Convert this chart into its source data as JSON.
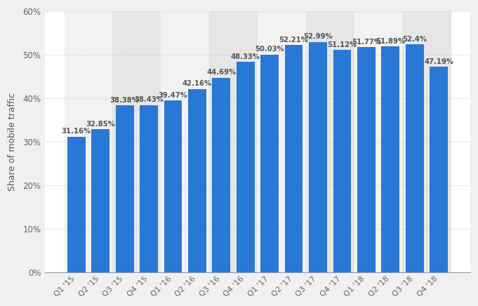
{
  "categories": [
    "Q1 '15",
    "Q2 '15",
    "Q3 '15",
    "Q4 '15",
    "Q1 '16",
    "Q2 '16",
    "Q3 '16",
    "Q4 '16",
    "Q1 '17",
    "Q2 '17",
    "Q3 '17",
    "Q4 '17",
    "Q1 '18",
    "Q2 '18",
    "Q3 '18",
    "Q4 '18"
  ],
  "values": [
    31.16,
    32.85,
    38.38,
    38.43,
    39.47,
    42.16,
    44.69,
    48.33,
    50.03,
    52.21,
    52.99,
    51.12,
    51.77,
    51.89,
    52.4,
    47.19
  ],
  "labels": [
    "31.16%",
    "32.85%",
    "38.38%",
    "38.43%",
    "39.47%",
    "42.16%",
    "44.69%",
    "48.33%",
    "50.03%",
    "52.21%",
    "52.99%",
    "51.12%",
    "51.77%",
    "51.89%",
    "52.4%",
    "47.19%"
  ],
  "bar_color": "#2878d6",
  "ylabel": "Share of mobile traffic",
  "ylim": [
    0,
    60
  ],
  "yticks": [
    0,
    10,
    20,
    30,
    40,
    50,
    60
  ],
  "ytick_labels": [
    "0%",
    "10%",
    "20%",
    "30%",
    "40%",
    "50%",
    "60%"
  ],
  "grid_color": "#cccccc",
  "plot_bg_color": "#ffffff",
  "outer_bg_color": "#f0f0f0",
  "col_band_color_light": "#f5f5f5",
  "col_band_color_dark": "#e8e8e8",
  "label_fontsize": 7.2,
  "label_color": "#555555",
  "ylabel_fontsize": 9,
  "tick_fontsize": 8.5,
  "bar_width": 0.75
}
